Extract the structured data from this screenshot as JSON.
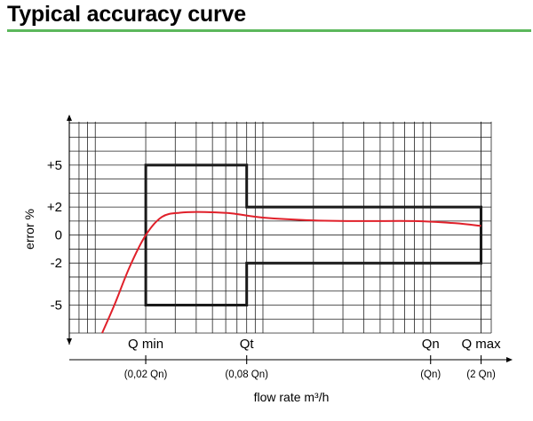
{
  "page": {
    "title": "Typical accuracy curve",
    "rule_color": "#5cb85c"
  },
  "chart_data": {
    "type": "line",
    "ylabel": "error %",
    "xlabel": "flow rate m³/h",
    "y_tick_labels": [
      {
        "value": 5,
        "label": "+5"
      },
      {
        "value": 2,
        "label": "+2"
      },
      {
        "value": 0,
        "label": "0"
      },
      {
        "value": -2,
        "label": "-2"
      },
      {
        "value": -5,
        "label": "-5"
      }
    ],
    "x_markers": [
      {
        "name": "Q min",
        "note": "(0,02 Qn)",
        "q_over_qn": 0.02
      },
      {
        "name": "Qt",
        "note": "(0,08 Qn)",
        "q_over_qn": 0.08
      },
      {
        "name": "Qn",
        "note": "(Qn)",
        "q_over_qn": 1
      },
      {
        "name": "Q max",
        "note": "(2 Qn)",
        "q_over_qn": 2
      }
    ],
    "ylim": [
      -7,
      8.1
    ],
    "xlim_q_over_qn": [
      0.007,
      2.3
    ],
    "x_scale": "log",
    "grid": true,
    "error_envelope": {
      "color": "#1a1a1a",
      "points": [
        [
          0.02,
          5
        ],
        [
          0.08,
          5
        ],
        [
          0.08,
          2
        ],
        [
          2,
          2
        ],
        [
          2,
          -2
        ],
        [
          0.08,
          -2
        ],
        [
          0.08,
          -5
        ],
        [
          0.02,
          -5
        ]
      ]
    },
    "series": [
      {
        "color": "#e0202a",
        "points": [
          [
            0.011,
            -7
          ],
          [
            0.013,
            -5
          ],
          [
            0.016,
            -2.3
          ],
          [
            0.02,
            0
          ],
          [
            0.025,
            1.3
          ],
          [
            0.032,
            1.6
          ],
          [
            0.045,
            1.65
          ],
          [
            0.065,
            1.55
          ],
          [
            0.1,
            1.25
          ],
          [
            0.2,
            1.05
          ],
          [
            0.4,
            1.0
          ],
          [
            0.8,
            1.0
          ],
          [
            1.4,
            0.85
          ],
          [
            2.0,
            0.65
          ]
        ]
      }
    ]
  }
}
